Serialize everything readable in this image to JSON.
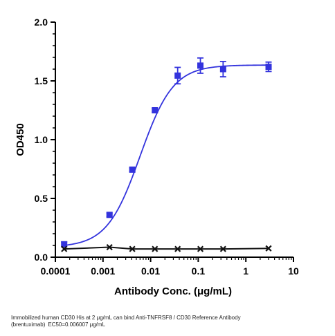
{
  "chart_data": {
    "type": "scatter",
    "xscale": "log",
    "xlabel": "Antibody Conc. (μg/mL)",
    "ylabel": "OD450",
    "xlim": [
      0.0001,
      10
    ],
    "ylim": [
      0,
      2.0
    ],
    "x_ticks": [
      "0.0001",
      "0.001",
      "0.01",
      "0.1",
      "1",
      "10"
    ],
    "y_ticks": [
      "0.0",
      "0.5",
      "1.0",
      "1.5",
      "2.0"
    ],
    "grid": false,
    "series": [
      {
        "marker": "square",
        "color": "#3333dd",
        "fit_curve": "4PL",
        "ec50": 0.006007,
        "points": [
          {
            "x": 0.000153,
            "y": 0.11,
            "err": 0.02
          },
          {
            "x": 0.00137,
            "y": 0.36,
            "err": 0.015
          },
          {
            "x": 0.00412,
            "y": 0.745,
            "err": 0.015
          },
          {
            "x": 0.0123,
            "y": 1.25,
            "err": 0.015
          },
          {
            "x": 0.037,
            "y": 1.545,
            "err": 0.07
          },
          {
            "x": 0.111,
            "y": 1.63,
            "err": 0.065
          },
          {
            "x": 0.333,
            "y": 1.6,
            "err": 0.065
          },
          {
            "x": 3.0,
            "y": 1.62,
            "err": 0.04
          }
        ]
      },
      {
        "marker": "x",
        "color": "#111111",
        "points": [
          {
            "x": 0.000153,
            "y": 0.07
          },
          {
            "x": 0.00137,
            "y": 0.085
          },
          {
            "x": 0.00412,
            "y": 0.07
          },
          {
            "x": 0.0123,
            "y": 0.07
          },
          {
            "x": 0.037,
            "y": 0.07
          },
          {
            "x": 0.111,
            "y": 0.07
          },
          {
            "x": 0.333,
            "y": 0.07
          },
          {
            "x": 3.0,
            "y": 0.075
          }
        ]
      }
    ],
    "caption_lines": [
      "Immobilized human CD30 His at 2  μg/mL can bind  Anti-TNFRSF8 / CD30 Reference Antibody",
      "(brentuximab) EC50=0.006007 μg/mL"
    ]
  }
}
